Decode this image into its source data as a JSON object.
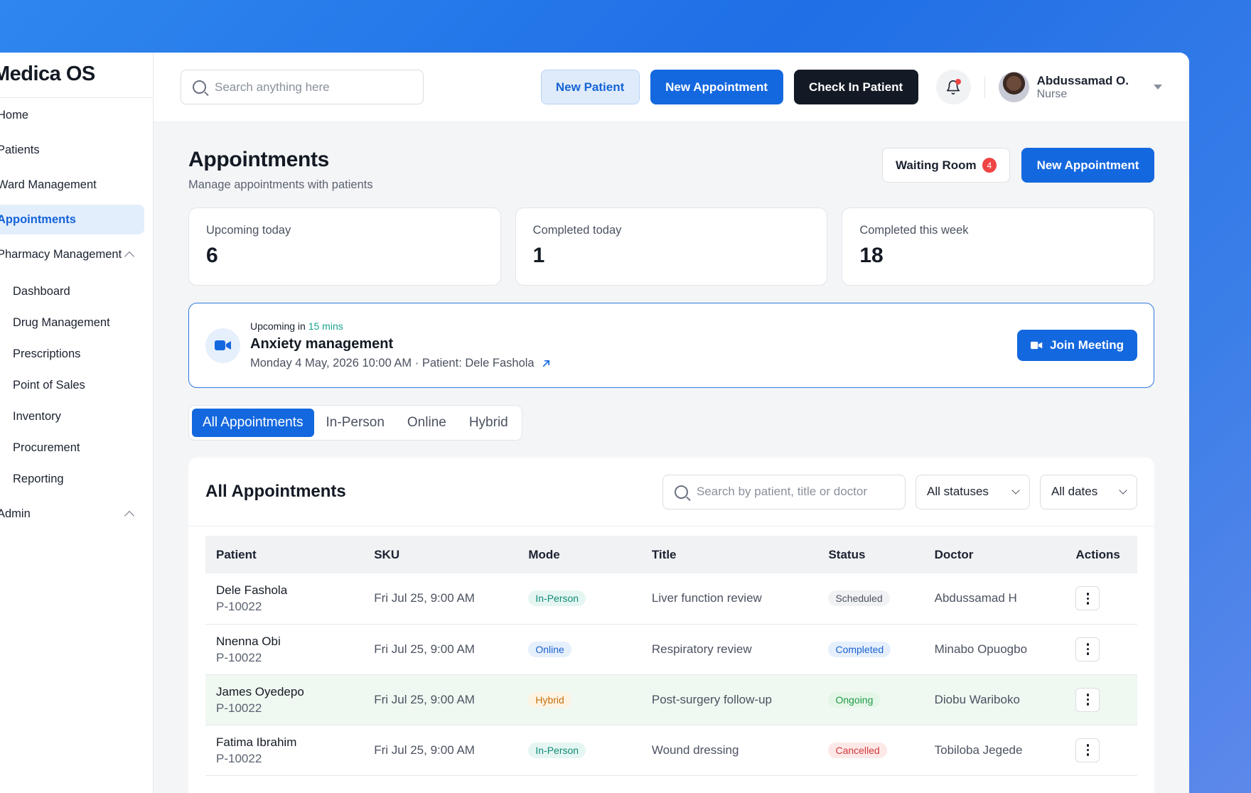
{
  "brand": "Medica OS",
  "sidebar": {
    "items": [
      {
        "label": "Home"
      },
      {
        "label": "Patients"
      },
      {
        "label": "Ward Management"
      },
      {
        "label": "Appointments",
        "active": true
      },
      {
        "label": "Pharmacy Management",
        "expanded": true
      },
      {
        "label": "Dashboard",
        "sub": true
      },
      {
        "label": "Drug Management",
        "sub": true
      },
      {
        "label": "Prescriptions",
        "sub": true
      },
      {
        "label": "Point of Sales",
        "sub": true
      },
      {
        "label": "Inventory",
        "sub": true
      },
      {
        "label": "Procurement",
        "sub": true
      },
      {
        "label": "Reporting",
        "sub": true
      },
      {
        "label": "Admin",
        "expanded": true
      }
    ]
  },
  "topbar": {
    "search_placeholder": "Search anything here",
    "new_patient": "New Patient",
    "new_appointment": "New Appointment",
    "check_in": "Check In Patient",
    "user_name": "Abdussamad O.",
    "user_role": "Nurse"
  },
  "page": {
    "title": "Appointments",
    "subtitle": "Manage appointments with patients",
    "waiting_room": "Waiting Room",
    "waiting_count": "4",
    "new_appointment": "New Appointment"
  },
  "stats": [
    {
      "label": "Upcoming today",
      "value": "6"
    },
    {
      "label": "Completed today",
      "value": "1"
    },
    {
      "label": "Completed this week",
      "value": "18"
    }
  ],
  "upcoming": {
    "prefix": "Upcoming in",
    "mins": "15 mins",
    "title": "Anxiety management",
    "meta": "Monday 4 May, 2026 10:00 AM  · Patient: Dele Fashola",
    "join": "Join Meeting"
  },
  "tabs": [
    "All Appointments",
    "In-Person",
    "Online",
    "Hybrid"
  ],
  "table_card": {
    "title": "All Appointments",
    "search_placeholder": "Search by patient, title or doctor",
    "status_filter": "All statuses",
    "date_filter": "All dates",
    "columns": [
      "Patient",
      "SKU",
      "Mode",
      "Title",
      "Status",
      "Doctor",
      "Actions"
    ],
    "rows": [
      {
        "name": "Dele Fashola",
        "pid": "P-10022",
        "sku": "Fri Jul 25, 9:00 AM",
        "mode": "In-Person",
        "title": "Liver function review",
        "status": "Scheduled",
        "doctor": "Abdussamad H"
      },
      {
        "name": "Nnenna Obi",
        "pid": "P-10022",
        "sku": "Fri Jul 25, 9:00 AM",
        "mode": "Online",
        "title": "Respiratory review",
        "status": "Completed",
        "doctor": "Minabo Opuogbo"
      },
      {
        "name": "James Oyedepo",
        "pid": "P-10022",
        "sku": "Fri Jul 25, 9:00 AM",
        "mode": "Hybrid",
        "title": "Post-surgery follow-up",
        "status": "Ongoing",
        "doctor": "Diobu Wariboko"
      },
      {
        "name": "Fatima Ibrahim",
        "pid": "P-10022",
        "sku": "Fri Jul 25, 9:00 AM",
        "mode": "In-Person",
        "title": "Wound dressing",
        "status": "Cancelled",
        "doctor": "Tobiloba Jegede"
      }
    ]
  },
  "colors": {
    "primary": "#1468df",
    "dark_button": "#131a26",
    "background_gradient_start": "#2f86ee"
  }
}
